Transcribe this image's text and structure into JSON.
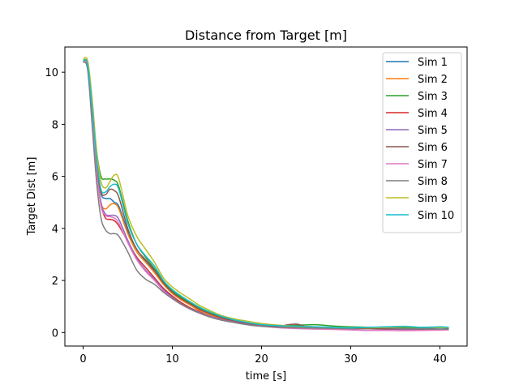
{
  "chart_data": {
    "type": "line",
    "title": "Distance from Target [m]",
    "xlabel": "time [s]",
    "ylabel": "Target Dist [m]",
    "xlim": [
      -2.05,
      43.05
    ],
    "ylim": [
      -0.52,
      10.97
    ],
    "xticks": [
      0,
      10,
      20,
      30,
      40
    ],
    "yticks": [
      0,
      2,
      4,
      6,
      8,
      10
    ],
    "grid": false,
    "legend_position": "top-right",
    "series": [
      {
        "name": "Sim 1",
        "color": "#1f77b4",
        "x": [
          0,
          0.5,
          1,
          1.5,
          2,
          2.5,
          3,
          3.5,
          4,
          5,
          6,
          7,
          8,
          9,
          10,
          11,
          12,
          13,
          14,
          15,
          16,
          17,
          18,
          19,
          20,
          22,
          24,
          26,
          28,
          30,
          32,
          34,
          36,
          38,
          40,
          41
        ],
        "y": [
          10.45,
          10.3,
          8.6,
          6.6,
          5.35,
          5.15,
          5.15,
          5.0,
          4.85,
          3.9,
          3.2,
          2.75,
          2.35,
          1.9,
          1.55,
          1.3,
          1.1,
          0.9,
          0.75,
          0.62,
          0.52,
          0.45,
          0.38,
          0.32,
          0.28,
          0.24,
          0.22,
          0.2,
          0.19,
          0.18,
          0.18,
          0.2,
          0.17,
          0.16,
          0.18,
          0.17
        ]
      },
      {
        "name": "Sim 2",
        "color": "#ff7f0e",
        "x": [
          0,
          0.5,
          1,
          1.5,
          2,
          2.5,
          3,
          3.5,
          4,
          5,
          6,
          7,
          8,
          9,
          10,
          11,
          12,
          13,
          14,
          15,
          16,
          17,
          18,
          19,
          20,
          22,
          24,
          26,
          28,
          30,
          32,
          34,
          36,
          38,
          40,
          41
        ],
        "y": [
          10.4,
          10.25,
          8.5,
          6.4,
          5.0,
          4.75,
          4.9,
          4.95,
          4.75,
          3.8,
          3.1,
          2.7,
          2.3,
          1.85,
          1.5,
          1.25,
          1.05,
          0.85,
          0.7,
          0.6,
          0.5,
          0.42,
          0.35,
          0.3,
          0.26,
          0.22,
          0.2,
          0.19,
          0.18,
          0.17,
          0.16,
          0.15,
          0.14,
          0.13,
          0.12,
          0.12
        ]
      },
      {
        "name": "Sim 3",
        "color": "#2ca02c",
        "x": [
          0,
          0.5,
          1,
          1.5,
          2,
          2.5,
          3,
          3.5,
          4,
          5,
          6,
          7,
          8,
          9,
          10,
          11,
          12,
          13,
          14,
          15,
          16,
          17,
          18,
          19,
          20,
          22,
          24,
          26,
          28,
          30,
          32,
          34,
          36,
          38,
          40,
          41
        ],
        "y": [
          10.45,
          10.35,
          8.9,
          7.0,
          6.0,
          5.9,
          5.9,
          5.85,
          5.6,
          4.3,
          3.4,
          2.9,
          2.45,
          1.95,
          1.6,
          1.35,
          1.15,
          0.95,
          0.8,
          0.65,
          0.55,
          0.46,
          0.4,
          0.34,
          0.3,
          0.26,
          0.28,
          0.3,
          0.25,
          0.22,
          0.2,
          0.18,
          0.2,
          0.15,
          0.12,
          0.12
        ]
      },
      {
        "name": "Sim 4",
        "color": "#d62728",
        "x": [
          0,
          0.5,
          1,
          1.5,
          2,
          2.5,
          3,
          3.5,
          4,
          5,
          6,
          7,
          8,
          9,
          10,
          11,
          12,
          13,
          14,
          15,
          16,
          17,
          18,
          19,
          20,
          22,
          24,
          26,
          28,
          30,
          32,
          34,
          36,
          38,
          40,
          41
        ],
        "y": [
          10.4,
          10.2,
          8.3,
          6.2,
          4.9,
          4.4,
          4.35,
          4.3,
          4.1,
          3.5,
          2.9,
          2.5,
          2.1,
          1.7,
          1.4,
          1.15,
          0.95,
          0.8,
          0.65,
          0.55,
          0.46,
          0.4,
          0.34,
          0.29,
          0.25,
          0.2,
          0.17,
          0.15,
          0.15,
          0.14,
          0.14,
          0.13,
          0.12,
          0.12,
          0.11,
          0.11
        ]
      },
      {
        "name": "Sim 5",
        "color": "#9467bd",
        "x": [
          0,
          0.5,
          1,
          1.5,
          2,
          2.5,
          3,
          3.5,
          4,
          5,
          6,
          7,
          8,
          9,
          10,
          11,
          12,
          13,
          14,
          15,
          16,
          17,
          18,
          19,
          20,
          22,
          24,
          26,
          28,
          30,
          32,
          34,
          36,
          38,
          40,
          41
        ],
        "y": [
          10.4,
          10.2,
          8.4,
          6.3,
          5.0,
          4.55,
          4.5,
          4.5,
          4.35,
          3.55,
          2.85,
          2.4,
          2.05,
          1.65,
          1.35,
          1.1,
          0.92,
          0.78,
          0.65,
          0.55,
          0.46,
          0.4,
          0.34,
          0.29,
          0.25,
          0.2,
          0.17,
          0.16,
          0.15,
          0.14,
          0.14,
          0.13,
          0.12,
          0.12,
          0.11,
          0.11
        ]
      },
      {
        "name": "Sim 6",
        "color": "#8c564b",
        "x": [
          0,
          0.5,
          1,
          1.5,
          2,
          2.5,
          3,
          3.5,
          4,
          5,
          6,
          7,
          8,
          9,
          10,
          11,
          12,
          13,
          14,
          15,
          16,
          17,
          18,
          19,
          20,
          22,
          23,
          24,
          25,
          26,
          28,
          30,
          32,
          34,
          36,
          38,
          40,
          41
        ],
        "y": [
          10.45,
          10.3,
          8.6,
          6.5,
          5.4,
          5.3,
          5.5,
          5.45,
          5.2,
          4.0,
          3.2,
          2.8,
          2.4,
          1.9,
          1.55,
          1.3,
          1.1,
          0.9,
          0.75,
          0.62,
          0.52,
          0.45,
          0.38,
          0.32,
          0.28,
          0.25,
          0.3,
          0.32,
          0.22,
          0.18,
          0.16,
          0.15,
          0.15,
          0.14,
          0.14,
          0.13,
          0.12,
          0.12
        ]
      },
      {
        "name": "Sim 7",
        "color": "#e377c2",
        "x": [
          0,
          0.5,
          1,
          1.5,
          2,
          2.5,
          3,
          3.5,
          4,
          5,
          6,
          7,
          8,
          9,
          10,
          11,
          12,
          13,
          14,
          15,
          16,
          17,
          18,
          19,
          20,
          22,
          24,
          26,
          28,
          30,
          32,
          34,
          36,
          38,
          40,
          41
        ],
        "y": [
          10.4,
          10.2,
          8.3,
          6.2,
          4.85,
          4.5,
          4.45,
          4.4,
          4.2,
          3.45,
          2.8,
          2.35,
          2.0,
          1.6,
          1.3,
          1.08,
          0.9,
          0.75,
          0.62,
          0.52,
          0.44,
          0.38,
          0.32,
          0.27,
          0.24,
          0.18,
          0.15,
          0.13,
          0.12,
          0.1,
          0.08,
          0.08,
          0.07,
          0.08,
          0.09,
          0.1
        ]
      },
      {
        "name": "Sim 8",
        "color": "#7f7f7f",
        "x": [
          0,
          0.5,
          1,
          1.5,
          2,
          2.5,
          3,
          3.5,
          4,
          5,
          6,
          7,
          8,
          9,
          10,
          11,
          12,
          13,
          14,
          15,
          16,
          17,
          18,
          19,
          20,
          22,
          24,
          26,
          28,
          30,
          32,
          34,
          36,
          38,
          40,
          41
        ],
        "y": [
          10.4,
          10.1,
          8.0,
          5.8,
          4.4,
          3.95,
          3.8,
          3.8,
          3.7,
          3.1,
          2.4,
          2.05,
          1.85,
          1.55,
          1.3,
          1.08,
          0.9,
          0.75,
          0.62,
          0.52,
          0.44,
          0.38,
          0.32,
          0.27,
          0.24,
          0.2,
          0.18,
          0.17,
          0.16,
          0.15,
          0.2,
          0.18,
          0.15,
          0.14,
          0.13,
          0.13
        ]
      },
      {
        "name": "Sim 9",
        "color": "#bcbd22",
        "x": [
          0,
          0.5,
          1,
          1.5,
          2,
          2.5,
          3,
          3.5,
          4,
          5,
          6,
          7,
          8,
          9,
          10,
          11,
          12,
          13,
          14,
          15,
          16,
          17,
          18,
          19,
          20,
          22,
          24,
          26,
          28,
          30,
          32,
          34,
          36,
          38,
          40,
          41
        ],
        "y": [
          10.5,
          10.45,
          9.0,
          7.0,
          5.8,
          5.55,
          5.8,
          6.05,
          5.9,
          4.5,
          3.7,
          3.2,
          2.7,
          2.1,
          1.75,
          1.5,
          1.28,
          1.05,
          0.88,
          0.72,
          0.6,
          0.52,
          0.46,
          0.4,
          0.35,
          0.28,
          0.24,
          0.22,
          0.2,
          0.19,
          0.18,
          0.2,
          0.22,
          0.2,
          0.19,
          0.19
        ]
      },
      {
        "name": "Sim 10",
        "color": "#17becf",
        "x": [
          0,
          0.5,
          1,
          1.5,
          2,
          2.5,
          3,
          3.5,
          4,
          5,
          6,
          7,
          8,
          9,
          10,
          11,
          12,
          13,
          14,
          15,
          16,
          17,
          18,
          19,
          20,
          22,
          24,
          26,
          28,
          30,
          32,
          34,
          36,
          38,
          40,
          41
        ],
        "y": [
          10.45,
          10.3,
          8.7,
          6.7,
          5.5,
          5.4,
          5.6,
          5.7,
          5.5,
          4.2,
          3.4,
          2.95,
          2.55,
          2.0,
          1.65,
          1.4,
          1.18,
          0.98,
          0.82,
          0.68,
          0.57,
          0.48,
          0.41,
          0.35,
          0.3,
          0.26,
          0.24,
          0.22,
          0.2,
          0.18,
          0.2,
          0.22,
          0.24,
          0.2,
          0.22,
          0.2
        ]
      }
    ]
  }
}
